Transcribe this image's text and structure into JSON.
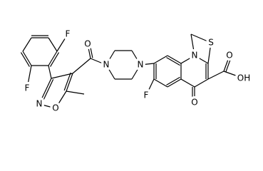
{
  "labels": [
    "F",
    "F",
    "N",
    "O",
    "O",
    "N",
    "N",
    "F",
    "N",
    "S",
    "O",
    "O",
    "OH"
  ]
}
